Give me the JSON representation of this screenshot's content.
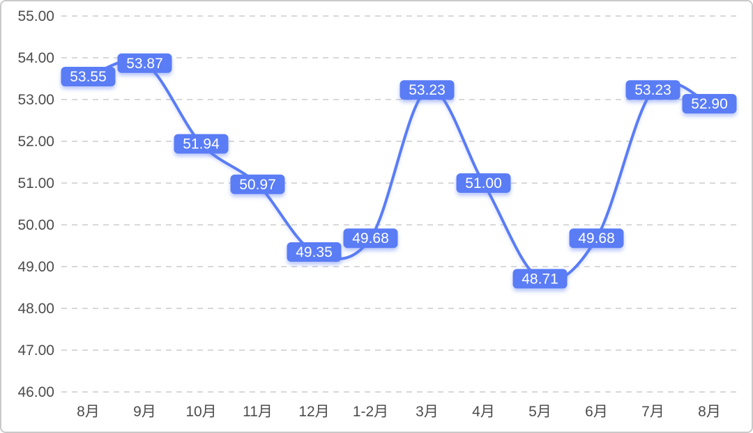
{
  "chart_data": {
    "type": "line",
    "smooth": true,
    "title": "",
    "xlabel": "",
    "ylabel": "",
    "categories": [
      "8月",
      "9月",
      "10月",
      "11月",
      "12月",
      "1-2月",
      "3月",
      "4月",
      "5月",
      "6月",
      "7月",
      "8月"
    ],
    "values": [
      53.55,
      53.87,
      51.94,
      50.97,
      49.35,
      49.68,
      53.23,
      51.0,
      48.71,
      49.68,
      53.23,
      52.9
    ],
    "data_labels": [
      "53.55",
      "53.87",
      "51.94",
      "50.97",
      "49.35",
      "49.68",
      "53.23",
      "51.00",
      "48.71",
      "49.68",
      "53.23",
      "52.90"
    ],
    "ylim": [
      46,
      55
    ],
    "ytick_step": 1,
    "yticks": [
      "46.00",
      "47.00",
      "48.00",
      "49.00",
      "50.00",
      "51.00",
      "52.00",
      "53.00",
      "54.00",
      "55.00"
    ],
    "grid": "horizontal-dashed",
    "legend": "none",
    "colors": {
      "line": "#5a7cf5",
      "label_background": "#5a7cf5",
      "label_text": "#ffffff",
      "gridline": "#d2d2d2",
      "axis_text": "#4c4c4c",
      "background": "#ffffff",
      "frame_border": "#c9c9c9"
    }
  }
}
